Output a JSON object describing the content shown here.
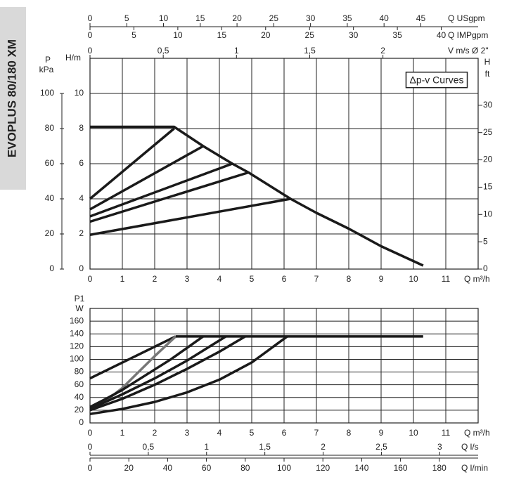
{
  "sidebar": {
    "label": "EVOPLUS 80/180 XM"
  },
  "chart_data": [
    {
      "type": "line",
      "annotation": "Δp-v Curves",
      "xlabel": "Q m³/h",
      "xlim": [
        0,
        12
      ],
      "xticks": [
        0,
        1,
        2,
        3,
        4,
        5,
        6,
        7,
        8,
        9,
        10,
        11
      ],
      "ylabel": "H/m",
      "ylim": [
        0,
        12
      ],
      "yticks": [
        0,
        2,
        4,
        6,
        8,
        10
      ],
      "kpa_axis": {
        "label": "P",
        "unit": "kPa",
        "lim": [
          0,
          120
        ],
        "ticks": [
          0,
          20,
          40,
          60,
          80,
          100
        ]
      },
      "y2label": "H",
      "y2unit": "ft",
      "y2lim": [
        0,
        38.6
      ],
      "y2ticks": [
        0,
        5,
        10,
        15,
        20,
        25,
        30
      ],
      "top_axes": [
        {
          "label": "Q USgpm",
          "lim": [
            0,
            52.8
          ],
          "ticks": [
            0,
            5,
            10,
            15,
            20,
            25,
            30,
            35,
            40,
            45
          ]
        },
        {
          "label": "Q IMPgpm",
          "lim": [
            0,
            44.2
          ],
          "ticks": [
            0,
            5,
            10,
            15,
            20,
            25,
            30,
            35,
            40
          ]
        },
        {
          "label": "V m/s Ø 2\"",
          "lim": [
            0,
            2.65
          ],
          "ticks": [
            0,
            {
              "value": 0.5,
              "label": "0,5"
            },
            1,
            {
              "value": 1.5,
              "label": "1,5"
            },
            2
          ]
        }
      ],
      "grid": true,
      "series": [
        {
          "color": "#1a1a1a",
          "x": [
            0,
            2.6,
            3.5,
            4.4,
            4.9,
            6.2,
            7,
            8,
            9,
            10.3
          ],
          "values": [
            8.1,
            8.1,
            7.0,
            6.0,
            5.5,
            4.0,
            3.2,
            2.3,
            1.3,
            0.2
          ]
        },
        {
          "color": "#1a1a1a",
          "x": [
            0,
            2.6
          ],
          "values": [
            4.0,
            8.0
          ]
        },
        {
          "color": "#1a1a1a",
          "x": [
            0,
            3.5
          ],
          "values": [
            3.4,
            7.0
          ]
        },
        {
          "color": "#1a1a1a",
          "x": [
            0,
            4.4
          ],
          "values": [
            3.0,
            6.0
          ]
        },
        {
          "color": "#1a1a1a",
          "x": [
            0,
            4.9
          ],
          "values": [
            2.7,
            5.5
          ]
        },
        {
          "color": "#1a1a1a",
          "x": [
            0,
            6.2
          ],
          "values": [
            1.95,
            4.0
          ]
        }
      ]
    },
    {
      "type": "line",
      "xlabel": "Q m³/h",
      "xlim": [
        0,
        12
      ],
      "xticks": [
        0,
        1,
        2,
        3,
        4,
        5,
        6,
        7,
        8,
        9,
        10,
        11
      ],
      "ylabel": "P1",
      "yunit": "W",
      "ylim": [
        0,
        180
      ],
      "yticks": [
        0,
        20,
        40,
        60,
        80,
        100,
        120,
        140,
        160
      ],
      "bottom_axes": [
        {
          "label": "Q l/s",
          "lim": [
            0,
            3.33
          ],
          "ticks": [
            0,
            {
              "value": 0.5,
              "label": "0,5"
            },
            1,
            {
              "value": 1.5,
              "label": "1,5"
            },
            2,
            {
              "value": 2.5,
              "label": "2,5"
            },
            3
          ]
        },
        {
          "label": "Q l/min",
          "lim": [
            0,
            200
          ],
          "ticks": [
            0,
            20,
            40,
            60,
            80,
            100,
            120,
            140,
            160,
            180
          ]
        }
      ],
      "grid": true,
      "series": [
        {
          "color": "#1a1a1a",
          "x": [
            0,
            2.65
          ],
          "values": [
            70,
            136
          ]
        },
        {
          "color": "#777777",
          "x": [
            0,
            0.5,
            1,
            1.5,
            2,
            2.65
          ],
          "values": [
            20,
            35,
            55,
            80,
            105,
            136
          ]
        },
        {
          "color": "#1a1a1a",
          "x": [
            0,
            0.5,
            1,
            1.5,
            2,
            2.5,
            3,
            3.5
          ],
          "values": [
            25,
            38,
            52,
            68,
            84,
            100,
            118,
            136
          ]
        },
        {
          "color": "#1a1a1a",
          "x": [
            0,
            1,
            2,
            3,
            4.2
          ],
          "values": [
            22,
            45,
            70,
            98,
            136
          ]
        },
        {
          "color": "#1a1a1a",
          "x": [
            0,
            1,
            2,
            3,
            4,
            4.8
          ],
          "values": [
            20,
            38,
            60,
            85,
            112,
            136
          ]
        },
        {
          "color": "#1a1a1a",
          "x": [
            0,
            1,
            2,
            3,
            4,
            5,
            6.1
          ],
          "values": [
            14,
            22,
            33,
            48,
            68,
            95,
            136
          ]
        },
        {
          "color": "#1a1a1a",
          "x": [
            2.65,
            10.3
          ],
          "values": [
            136,
            136
          ]
        }
      ]
    }
  ]
}
